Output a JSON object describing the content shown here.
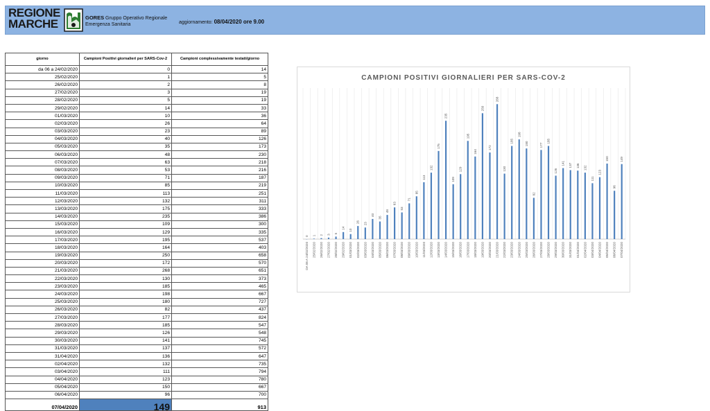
{
  "header": {
    "logo_line1": "REGIONE",
    "logo_line2": "MARCHE",
    "org_name": "GORES",
    "org_desc1": "Gruppo Operativo Regionale",
    "org_desc2": "Emergenza Sanitaria",
    "update_label": "aggiornamento:",
    "update_value": "08/04/2020 ore 9.00"
  },
  "table": {
    "col_day": "giorno",
    "col_positive": "Campioni Positivi giornalieri per SARS-Cov-2",
    "col_tested": "Campioni complessivamente testati/giorno",
    "rows": [
      [
        "da 06 a 24/02/2020",
        "0",
        "14"
      ],
      [
        "25/02/2020",
        "1",
        "5"
      ],
      [
        "26/02/2020",
        "2",
        "8"
      ],
      [
        "27/02/2020",
        "3",
        "19"
      ],
      [
        "28/02/2020",
        "5",
        "19"
      ],
      [
        "29/02/2020",
        "14",
        "33"
      ],
      [
        "01/03/2020",
        "10",
        "36"
      ],
      [
        "02/03/2020",
        "26",
        "64"
      ],
      [
        "03/03/2020",
        "23",
        "89"
      ],
      [
        "04/03/2020",
        "40",
        "126"
      ],
      [
        "05/03/2020",
        "35",
        "173"
      ],
      [
        "06/03/2020",
        "48",
        "230"
      ],
      [
        "07/03/2020",
        "63",
        "218"
      ],
      [
        "08/03/2020",
        "53",
        "216"
      ],
      [
        "09/03/2020",
        "71",
        "187"
      ],
      [
        "10/03/2020",
        "85",
        "219"
      ],
      [
        "11/03/2020",
        "113",
        "251"
      ],
      [
        "12/03/2020",
        "132",
        "311"
      ],
      [
        "13/03/2020",
        "175",
        "333"
      ],
      [
        "14/03/2020",
        "235",
        "386"
      ],
      [
        "15/03/2020",
        "109",
        "300"
      ],
      [
        "16/03/2020",
        "129",
        "335"
      ],
      [
        "17/03/2020",
        "195",
        "537"
      ],
      [
        "18/03/2020",
        "164",
        "403"
      ],
      [
        "19/03/2020",
        "250",
        "658"
      ],
      [
        "20/03/2020",
        "172",
        "570"
      ],
      [
        "21/03/2020",
        "268",
        "651"
      ],
      [
        "22/03/2020",
        "130",
        "373"
      ],
      [
        "23/03/2020",
        "185",
        "465"
      ],
      [
        "24/03/2020",
        "198",
        "667"
      ],
      [
        "25/03/2020",
        "180",
        "727"
      ],
      [
        "26/03/2020",
        "82",
        "437"
      ],
      [
        "27/03/2020",
        "177",
        "824"
      ],
      [
        "28/03/2020",
        "185",
        "547"
      ],
      [
        "29/03/2020",
        "126",
        "548"
      ],
      [
        "30/03/2020",
        "141",
        "745"
      ],
      [
        "31/03/2020",
        "137",
        "572"
      ],
      [
        "31/04/2020",
        "136",
        "647"
      ],
      [
        "02/04/2020",
        "132",
        "735"
      ],
      [
        "03/04/2020",
        "111",
        "794"
      ],
      [
        "04/04/2020",
        "123",
        "780"
      ],
      [
        "05/04/2020",
        "150",
        "667"
      ],
      [
        "06/04/2020",
        "96",
        "700"
      ]
    ],
    "last_row": [
      "07/04/2020",
      "149",
      "913"
    ]
  },
  "chart_data": {
    "type": "bar",
    "title": "CAMPIONI POSITIVI GIORNALIERI PER SARS-COV-2",
    "xlabel": "",
    "ylabel": "",
    "ylim": [
      0,
      300
    ],
    "grid": true,
    "bar_color": "#4f81bd",
    "categories": [
      "DA 06 A 24/02/2020",
      "25/02/2020",
      "26/02/2020",
      "27/02/2020",
      "28/02/2020",
      "29/02/2020",
      "01/03/2020",
      "02/03/2020",
      "03/03/2020",
      "04/03/2020",
      "05/03/2020",
      "06/03/2020",
      "07/03/2020",
      "08/03/2020",
      "09/03/2020",
      "10/03/2020",
      "11/03/2020",
      "12/03/2020",
      "13/03/2020",
      "14/03/2020",
      "15/03/2020",
      "16/03/2020",
      "17/03/2020",
      "18/03/2020",
      "19/03/2020",
      "20/03/2020",
      "21/03/2020",
      "22/03/2020",
      "23/03/2020",
      "24/03/2020",
      "25/03/2020",
      "26/03/2020",
      "27/03/2020",
      "28/03/2020",
      "29/03/2020",
      "30/03/2020",
      "31/03/2020",
      "01/04/2020",
      "02/04/2020",
      "03/04/2020",
      "04/04/2020",
      "05/04/2020",
      "06/04/2020",
      "07/04/2020"
    ],
    "values": [
      0,
      1,
      2,
      3,
      5,
      14,
      10,
      26,
      23,
      40,
      35,
      48,
      63,
      53,
      71,
      85,
      113,
      132,
      175,
      235,
      109,
      129,
      195,
      164,
      250,
      172,
      268,
      130,
      185,
      198,
      180,
      82,
      177,
      185,
      126,
      141,
      137,
      136,
      132,
      111,
      123,
      150,
      96,
      149
    ]
  }
}
